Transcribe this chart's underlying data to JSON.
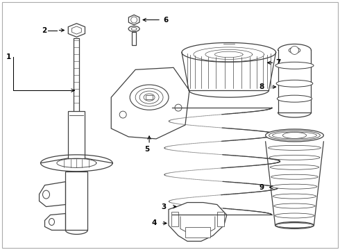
{
  "background_color": "#ffffff",
  "line_color": "#404040",
  "fig_width": 4.9,
  "fig_height": 3.6,
  "dpi": 100
}
